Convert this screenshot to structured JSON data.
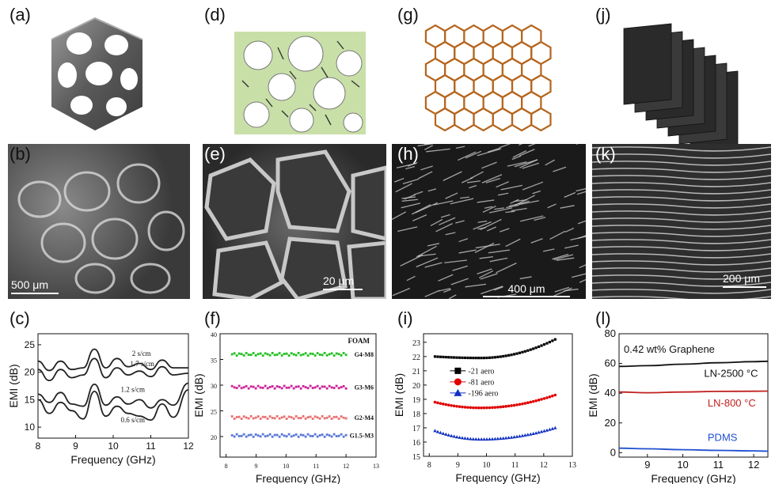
{
  "panels": {
    "a": "(a)",
    "b": "(b)",
    "c": "(c)",
    "d": "(d)",
    "e": "(e)",
    "f": "(f)",
    "g": "(g)",
    "h": "(h)",
    "i": "(i)",
    "j": "(j)",
    "k": "(k)",
    "l": "(l)"
  },
  "scalebars": {
    "b": "500 μm",
    "e": "20 μm",
    "h": "400 μm",
    "k": "200 μm"
  },
  "colors": {
    "gyroid": "#707070",
    "foam_bg": "#c8e0a8",
    "honeycomb": "#b5651d",
    "sheets": "#2a2a2a",
    "f_green": "#22c022",
    "f_magenta": "#cc2299",
    "f_salmon": "#e87070",
    "f_blue": "#5a78d8",
    "i_black": "#000000",
    "i_red": "#e00000",
    "i_blue": "#1030c0",
    "l_black": "#111111",
    "l_red": "#c02020",
    "l_blue": "#2050d0"
  },
  "chart_data": [
    {
      "panel": "c",
      "type": "line",
      "xlabel": "Frequency (GHz)",
      "ylabel": "EMI (dB)",
      "xlim": [
        8,
        12
      ],
      "ylim": [
        8,
        27
      ],
      "xticks": [
        8,
        9,
        10,
        11,
        12
      ],
      "yticks": [
        10,
        15,
        20,
        25
      ],
      "x": [
        8.0,
        8.3,
        8.6,
        8.9,
        9.2,
        9.5,
        9.8,
        10.1,
        10.4,
        10.7,
        11.0,
        11.3,
        11.6,
        12.0
      ],
      "series": [
        {
          "name": "2 s/cm",
          "values": [
            22.0,
            20.3,
            22.0,
            20.5,
            20.8,
            24.2,
            20.8,
            22.5,
            21.0,
            21.6,
            20.5,
            22.2,
            20.8,
            20.8
          ]
        },
        {
          "name": "1.7 s/cm",
          "values": [
            20.5,
            18.5,
            20.5,
            19.0,
            19.5,
            22.5,
            19.0,
            20.8,
            19.5,
            20.2,
            19.2,
            21.0,
            19.5,
            19.8
          ]
        },
        {
          "name": "1.2 s/cm",
          "values": [
            16.0,
            14.5,
            16.3,
            14.2,
            13.8,
            17.8,
            14.0,
            15.5,
            14.2,
            15.0,
            13.5,
            15.0,
            14.0,
            18.0
          ]
        },
        {
          "name": "0.6 s/cm",
          "values": [
            15.0,
            12.5,
            14.5,
            13.0,
            11.5,
            16.5,
            12.0,
            13.8,
            12.5,
            12.0,
            11.3,
            14.2,
            11.8,
            16.8
          ]
        }
      ]
    },
    {
      "panel": "f",
      "type": "scatter",
      "title": "FOAM",
      "xlabel": "Frequency (GHz)",
      "ylabel": "EMI (dB)",
      "xlim": [
        7.8,
        13
      ],
      "ylim": [
        16,
        40
      ],
      "xticks": [
        8,
        9,
        10,
        11,
        12,
        13
      ],
      "yticks": [
        20,
        25,
        30,
        35,
        40
      ],
      "x_start": 8.2,
      "x_end": 12.0,
      "series": [
        {
          "name": "G4-M8",
          "level": 36.0
        },
        {
          "name": "G3-M6",
          "level": 29.6
        },
        {
          "name": "G2-M4",
          "level": 23.7
        },
        {
          "name": "G1.5-M3",
          "level": 20.2
        }
      ]
    },
    {
      "panel": "i",
      "type": "scatter",
      "xlabel": "Frequency (GHz)",
      "ylabel": "EMI (dB)",
      "xlim": [
        7.8,
        13
      ],
      "ylim": [
        15,
        23.6
      ],
      "xticks": [
        8,
        9,
        10,
        11,
        12,
        13
      ],
      "yticks": [
        15,
        16,
        17,
        18,
        19,
        20,
        21,
        22,
        23
      ],
      "x_start": 8.2,
      "x_end": 12.4,
      "series": [
        {
          "name": "-21 aero",
          "start": 22.0,
          "min": 21.9,
          "end": 23.2
        },
        {
          "name": "-81 aero",
          "start": 18.8,
          "min": 18.4,
          "end": 19.3
        },
        {
          "name": "-196 aero",
          "start": 16.8,
          "min": 16.2,
          "end": 17.0
        }
      ]
    },
    {
      "panel": "l",
      "type": "line",
      "xlabel": "Frequency (GHz)",
      "ylabel": "EMI (dB)",
      "xlim": [
        8.2,
        12.4
      ],
      "ylim": [
        -3,
        80
      ],
      "xticks": [
        9,
        10,
        11,
        12
      ],
      "yticks": [
        0,
        20,
        40,
        60,
        80
      ],
      "annotation": "0.42 wt% Graphene",
      "x": [
        8.2,
        9.0,
        10.0,
        11.0,
        12.0,
        12.4
      ],
      "series": [
        {
          "name": "LN-2500 °C",
          "values": [
            58.0,
            58.5,
            59.5,
            60.5,
            61.2,
            61.5
          ]
        },
        {
          "name": "LN-800 °C",
          "values": [
            40.8,
            40.3,
            40.8,
            41.2,
            41.3,
            41.4
          ]
        },
        {
          "name": "PDMS",
          "values": [
            3.0,
            2.6,
            2.0,
            1.5,
            1.2,
            1.0
          ]
        }
      ]
    }
  ]
}
